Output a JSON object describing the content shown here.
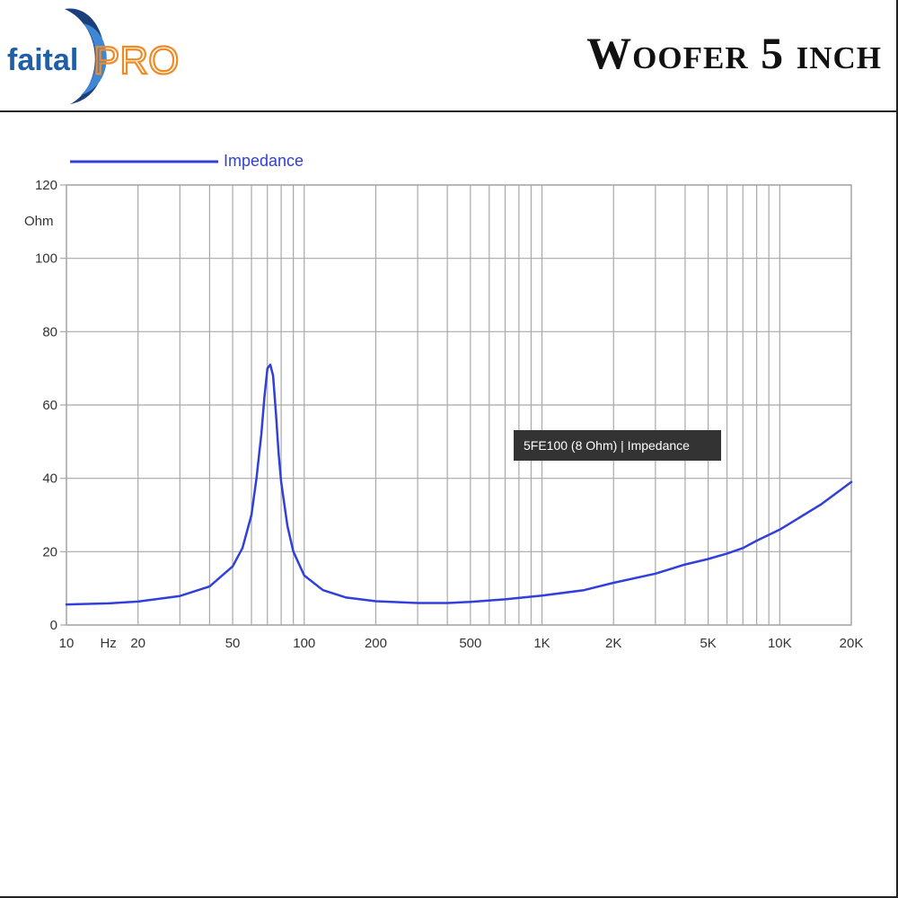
{
  "brand": {
    "logo_text_left": "faital",
    "logo_text_right": "PRO",
    "colors": {
      "blue": "#1f5fa8",
      "orange": "#f08a24"
    }
  },
  "header": {
    "title": "Woofer 5 inch"
  },
  "chart_data": {
    "type": "line",
    "legend": [
      {
        "name": "Impedance",
        "color": "#3040d8"
      }
    ],
    "legend_placement": "top-left",
    "ylabel": "Ohm",
    "xlabel": "Hz",
    "xscale": "log",
    "xlim": [
      10,
      20000
    ],
    "ylim": [
      0,
      120
    ],
    "grid": true,
    "y_ticks": [
      0,
      20,
      40,
      60,
      80,
      100,
      120
    ],
    "x_tick_labels": [
      {
        "value": 10,
        "label": "10"
      },
      {
        "value": 20,
        "label": "20"
      },
      {
        "value": 50,
        "label": "50"
      },
      {
        "value": 100,
        "label": "100"
      },
      {
        "value": 200,
        "label": "200"
      },
      {
        "value": 500,
        "label": "500"
      },
      {
        "value": 1000,
        "label": "1K"
      },
      {
        "value": 2000,
        "label": "2K"
      },
      {
        "value": 5000,
        "label": "5K"
      },
      {
        "value": 10000,
        "label": "10K"
      },
      {
        "value": 20000,
        "label": "20K"
      }
    ],
    "x_unit_tick": {
      "value": 15,
      "label": "Hz"
    },
    "grid_x": [
      10,
      20,
      30,
      40,
      50,
      60,
      70,
      80,
      90,
      100,
      200,
      300,
      400,
      500,
      600,
      700,
      800,
      900,
      1000,
      2000,
      3000,
      4000,
      5000,
      6000,
      7000,
      8000,
      9000,
      10000,
      20000
    ],
    "tooltip": "5FE100 (8 Ohm) | Impedance",
    "series": [
      {
        "name": "Impedance",
        "color": "#3040d8",
        "x": [
          10,
          15,
          20,
          30,
          40,
          50,
          55,
          60,
          63,
          66,
          68,
          70,
          72,
          74,
          76,
          78,
          80,
          85,
          90,
          100,
          120,
          150,
          200,
          300,
          400,
          500,
          700,
          1000,
          1500,
          2000,
          3000,
          4000,
          5000,
          6000,
          7000,
          8000,
          10000,
          15000,
          20000
        ],
        "y": [
          5.6,
          5.9,
          6.4,
          7.9,
          10.5,
          16,
          21,
          30,
          40,
          52,
          62,
          70,
          71,
          68,
          58,
          47,
          39,
          27,
          20,
          13.5,
          9.5,
          7.5,
          6.5,
          6,
          6,
          6.3,
          7,
          8,
          9.5,
          11.5,
          14,
          16.5,
          18,
          19.5,
          21,
          23,
          26,
          33,
          39
        ]
      }
    ]
  }
}
